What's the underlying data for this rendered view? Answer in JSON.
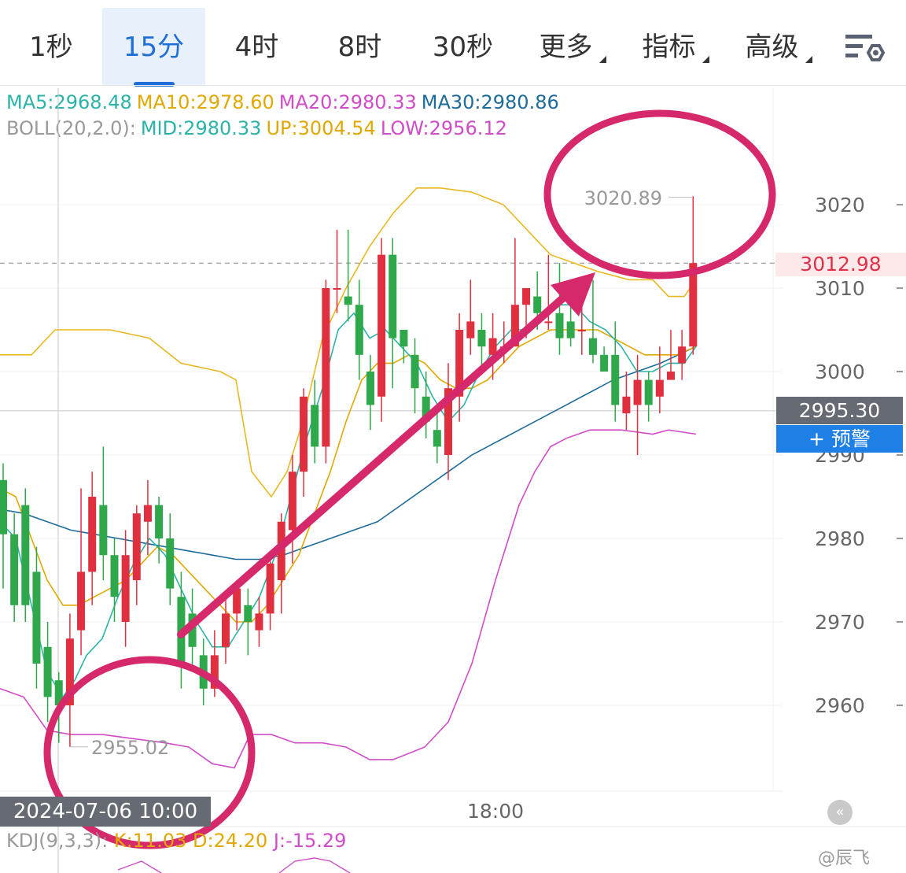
{
  "tabs": [
    {
      "label": "1秒",
      "active": false
    },
    {
      "label": "15分",
      "active": true
    },
    {
      "label": "4时",
      "active": false
    },
    {
      "label": "8时",
      "active": false
    },
    {
      "label": "30秒",
      "active": false
    },
    {
      "label": "更多",
      "active": false,
      "dropdown": true
    },
    {
      "label": "指标",
      "active": false,
      "dropdown": true
    },
    {
      "label": "高级",
      "active": false,
      "dropdown": true
    }
  ],
  "settings_icon": "chart-settings-icon",
  "legend": {
    "ma5": "MA5:2968.48",
    "ma10": "MA10:2978.60",
    "ma20": "MA20:2980.33",
    "ma30": "MA30:2980.86",
    "boll_name": "BOLL(20,2.0):",
    "boll_mid": "MID:2980.33",
    "boll_up": "UP:3004.54",
    "boll_low": "LOW:2956.12"
  },
  "price_tag": "3012.98",
  "current_price": "2995.30",
  "alert_button": "+ 预警",
  "time_tag": "2024-07-06 10:00",
  "x_tick": "18:00",
  "collapse_icon": "collapse-left-icon",
  "kdj": {
    "name": "KDJ(9,3,3):",
    "k": "K:11.03",
    "d": "D:24.20",
    "j": "J:-15.29"
  },
  "watermark": "@辰飞",
  "colors": {
    "up": "#e0303f",
    "down": "#2ea84a",
    "ma5": "#2bb3a8",
    "ma10": "#e0a800",
    "ma20": "#d04cc8",
    "ma30": "#1d6b99",
    "boll_up": "#e8b820",
    "boll_low": "#d04cc8",
    "annotation": "#d6296b"
  },
  "chart_data": {
    "type": "candlestick",
    "ylim": [
      2947,
      3032
    ],
    "y_ticks": [
      3020,
      3010,
      3000,
      2990,
      2980,
      2970,
      2960
    ],
    "y_tick_labels": [
      "3020",
      "3010",
      "3000",
      "2990",
      "2980",
      "2970",
      "2960"
    ],
    "high_label": "3020.89",
    "low_label": "2955.02",
    "candles": [
      [
        2987,
        2980.5,
        2989,
        2974
      ],
      [
        2980.5,
        2972,
        2983,
        2970
      ],
      [
        2984,
        2972,
        2986,
        2970
      ],
      [
        2976,
        2965,
        2979,
        2962
      ],
      [
        2967,
        2961,
        2970,
        2958
      ],
      [
        2963,
        2960,
        2964,
        2955.5
      ],
      [
        2960,
        2968,
        2971,
        2955.02
      ],
      [
        2969,
        2976,
        2986,
        2966
      ],
      [
        2976,
        2985,
        2988,
        2972
      ],
      [
        2984,
        2978,
        2991,
        2975
      ],
      [
        2978,
        2973,
        2980,
        2970
      ],
      [
        2970,
        2978,
        2981,
        2967
      ],
      [
        2975,
        2983,
        2984,
        2972
      ],
      [
        2982,
        2984,
        2987,
        2978
      ],
      [
        2984,
        2980,
        2985,
        2977
      ],
      [
        2980,
        2974,
        2983,
        2972
      ],
      [
        2973,
        2965,
        2976,
        2962
      ],
      [
        2971,
        2967,
        2974,
        2964
      ],
      [
        2966,
        2962,
        2968,
        2960
      ],
      [
        2962,
        2966,
        2969,
        2961
      ],
      [
        2967,
        2971,
        2973,
        2965
      ],
      [
        2971,
        2974,
        2975,
        2969
      ],
      [
        2972,
        2970,
        2974,
        2966
      ],
      [
        2969,
        2971,
        2973,
        2967
      ],
      [
        2971,
        2977,
        2978,
        2969
      ],
      [
        2975,
        2982,
        2983,
        2971
      ],
      [
        2981,
        2988,
        2990,
        2977
      ],
      [
        2988,
        2997,
        2998,
        2985
      ],
      [
        2996,
        2991,
        2999,
        2989
      ],
      [
        2991,
        3010,
        3011,
        2989
      ],
      [
        3010,
        3010,
        3017,
        3007
      ],
      [
        3009,
        3008,
        3017,
        3006
      ],
      [
        3008,
        3002,
        3011,
        2999
      ],
      [
        3000,
        2996,
        3002,
        2993
      ],
      [
        2997,
        3014,
        3016,
        2994
      ],
      [
        3014,
        3004,
        3016,
        2998
      ],
      [
        3005,
        3003,
        3005,
        3001
      ],
      [
        3002,
        2998,
        3004,
        2995
      ],
      [
        2997,
        2994,
        3000,
        2992
      ],
      [
        2993,
        2991,
        2995,
        2989
      ],
      [
        2990,
        2998,
        3001,
        2987
      ],
      [
        2997,
        3005,
        3007,
        2994
      ],
      [
        3004,
        3006,
        3011,
        3002
      ],
      [
        3005,
        3003,
        3007,
        3000
      ],
      [
        3002,
        3004,
        3007,
        2999
      ],
      [
        3003,
        3003,
        3006,
        3001
      ],
      [
        3003,
        3008,
        3016,
        3003
      ],
      [
        3008,
        3010,
        3010,
        3004
      ],
      [
        3009,
        3007,
        3012,
        3005
      ],
      [
        3006,
        3006,
        3014,
        3005
      ],
      [
        3007,
        3004,
        3013,
        3002
      ],
      [
        3006,
        3004,
        3010,
        3003
      ],
      [
        3005,
        3005,
        3011,
        3002
      ],
      [
        3004,
        3002,
        3011,
        3001
      ],
      [
        3002,
        3000,
        3003,
        3000
      ],
      [
        3002,
        2996,
        3006,
        2994
      ],
      [
        2995,
        2997,
        3000,
        2993
      ],
      [
        2996,
        2999,
        3002,
        2990
      ],
      [
        2999,
        2996,
        3000,
        2994
      ],
      [
        2997,
        2999,
        3003,
        2995
      ],
      [
        2999,
        3000,
        3005,
        3000
      ],
      [
        3001,
        3003,
        3005,
        2999
      ],
      [
        3003,
        3013,
        3021,
        3002
      ]
    ],
    "ma5": [
      [
        0,
        2982
      ],
      [
        20,
        2980
      ],
      [
        40,
        2972
      ],
      [
        60,
        2964
      ],
      [
        80,
        2961
      ],
      [
        95,
        2963
      ],
      [
        110,
        2966
      ],
      [
        130,
        2968
      ],
      [
        150,
        2973
      ],
      [
        170,
        2977
      ],
      [
        190,
        2980
      ],
      [
        210,
        2978
      ],
      [
        230,
        2974
      ],
      [
        250,
        2970
      ],
      [
        270,
        2967
      ],
      [
        290,
        2967
      ],
      [
        310,
        2970
      ],
      [
        330,
        2973
      ],
      [
        350,
        2978
      ],
      [
        370,
        2985
      ],
      [
        390,
        2992
      ],
      [
        410,
        2998
      ],
      [
        430,
        3005
      ],
      [
        450,
        3007
      ],
      [
        470,
        3004
      ],
      [
        490,
        3005
      ],
      [
        510,
        3003
      ],
      [
        530,
        3001
      ],
      [
        550,
        2997
      ],
      [
        570,
        2994
      ],
      [
        590,
        2996
      ],
      [
        610,
        3000
      ],
      [
        630,
        3003
      ],
      [
        650,
        3005
      ],
      [
        670,
        3005
      ],
      [
        690,
        3007
      ],
      [
        710,
        3008
      ],
      [
        730,
        3008
      ],
      [
        750,
        3006
      ],
      [
        770,
        3005
      ],
      [
        790,
        3003
      ],
      [
        810,
        3000
      ],
      [
        830,
        3000
      ],
      [
        850,
        3001
      ],
      [
        870,
        3001
      ],
      [
        885,
        3003
      ]
    ],
    "ma10": [
      [
        0,
        2986
      ],
      [
        20,
        2985
      ],
      [
        40,
        2980
      ],
      [
        60,
        2975
      ],
      [
        80,
        2972
      ],
      [
        100,
        2972
      ],
      [
        120,
        2973
      ],
      [
        140,
        2974
      ],
      [
        160,
        2975
      ],
      [
        180,
        2977
      ],
      [
        200,
        2979
      ],
      [
        220,
        2978
      ],
      [
        240,
        2976
      ],
      [
        260,
        2974
      ],
      [
        280,
        2972
      ],
      [
        300,
        2970
      ],
      [
        320,
        2970
      ],
      [
        340,
        2972
      ],
      [
        360,
        2975
      ],
      [
        380,
        2978
      ],
      [
        400,
        2983
      ],
      [
        420,
        2988
      ],
      [
        440,
        2994
      ],
      [
        460,
        2999
      ],
      [
        480,
        3001
      ],
      [
        500,
        3001
      ],
      [
        520,
        3002
      ],
      [
        540,
        3001
      ],
      [
        560,
        2999
      ],
      [
        580,
        2998
      ],
      [
        600,
        2998
      ],
      [
        620,
        2999
      ],
      [
        640,
        3001
      ],
      [
        660,
        3003
      ],
      [
        680,
        3004
      ],
      [
        700,
        3005
      ],
      [
        720,
        3005
      ],
      [
        740,
        3005
      ],
      [
        760,
        3005
      ],
      [
        780,
        3004
      ],
      [
        800,
        3003
      ],
      [
        820,
        3002
      ],
      [
        840,
        3002
      ],
      [
        860,
        3002
      ],
      [
        885,
        3003
      ]
    ],
    "ma30": [
      [
        0,
        2983.5
      ],
      [
        30,
        2983
      ],
      [
        60,
        2982
      ],
      [
        90,
        2981
      ],
      [
        120,
        2980.5
      ],
      [
        150,
        2980
      ],
      [
        180,
        2979.5
      ],
      [
        210,
        2979
      ],
      [
        240,
        2978.5
      ],
      [
        270,
        2978
      ],
      [
        300,
        2977.5
      ],
      [
        330,
        2977.5
      ],
      [
        360,
        2978
      ],
      [
        390,
        2979
      ],
      [
        420,
        2980
      ],
      [
        450,
        2981
      ],
      [
        480,
        2982
      ],
      [
        510,
        2984
      ],
      [
        540,
        2986
      ],
      [
        570,
        2988
      ],
      [
        600,
        2990
      ],
      [
        630,
        2991.5
      ],
      [
        660,
        2993
      ],
      [
        690,
        2994.5
      ],
      [
        720,
        2996
      ],
      [
        750,
        2997.5
      ],
      [
        780,
        2999
      ],
      [
        810,
        3000
      ],
      [
        840,
        3001
      ],
      [
        885,
        3003
      ]
    ],
    "boll_up": [
      [
        0,
        3002
      ],
      [
        40,
        3002
      ],
      [
        70,
        3005
      ],
      [
        100,
        3005
      ],
      [
        140,
        3005
      ],
      [
        190,
        3004
      ],
      [
        230,
        3001
      ],
      [
        280,
        3000
      ],
      [
        300,
        2999
      ],
      [
        320,
        2988
      ],
      [
        345,
        2985
      ],
      [
        365,
        2988
      ],
      [
        385,
        2994
      ],
      [
        410,
        3004
      ],
      [
        440,
        3010
      ],
      [
        470,
        3015
      ],
      [
        500,
        3019
      ],
      [
        530,
        3022
      ],
      [
        560,
        3022
      ],
      [
        600,
        3021.5
      ],
      [
        640,
        3020
      ],
      [
        670,
        3017
      ],
      [
        700,
        3014
      ],
      [
        730,
        3013
      ],
      [
        760,
        3012
      ],
      [
        800,
        3011
      ],
      [
        830,
        3011
      ],
      [
        850,
        3009
      ],
      [
        870,
        3009
      ],
      [
        885,
        3011
      ]
    ],
    "boll_low": [
      [
        0,
        2962
      ],
      [
        30,
        2961
      ],
      [
        60,
        2957
      ],
      [
        90,
        2956.5
      ],
      [
        130,
        2956.5
      ],
      [
        170,
        2956
      ],
      [
        210,
        2955.5
      ],
      [
        240,
        2955
      ],
      [
        270,
        2953
      ],
      [
        298,
        2952.5
      ],
      [
        318,
        2956.5
      ],
      [
        345,
        2956.5
      ],
      [
        375,
        2955.5
      ],
      [
        410,
        2955.5
      ],
      [
        440,
        2955
      ],
      [
        470,
        2953.5
      ],
      [
        500,
        2953.5
      ],
      [
        540,
        2955
      ],
      [
        570,
        2958
      ],
      [
        600,
        2965
      ],
      [
        630,
        2975
      ],
      [
        660,
        2984
      ],
      [
        680,
        2988
      ],
      [
        700,
        2991
      ],
      [
        720,
        2992
      ],
      [
        750,
        2993
      ],
      [
        790,
        2993
      ],
      [
        830,
        2992.5
      ],
      [
        850,
        2993
      ],
      [
        885,
        2992.5
      ]
    ],
    "kdj_series": {
      "k": [
        [
          150,
          1105
        ],
        [
          180,
          1094
        ],
        [
          205,
          1109
        ]
      ],
      "d": [
        [
          355,
          1109
        ],
        [
          375,
          1094
        ],
        [
          400,
          1090
        ],
        [
          420,
          1094
        ],
        [
          445,
          1109
        ]
      ]
    }
  }
}
